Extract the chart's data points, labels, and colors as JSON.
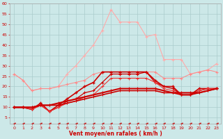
{
  "x": [
    0,
    1,
    2,
    3,
    4,
    5,
    6,
    7,
    8,
    9,
    10,
    11,
    12,
    13,
    14,
    15,
    16,
    17,
    18,
    19,
    20,
    21,
    22,
    23
  ],
  "line_light_pink": [
    26,
    23,
    18,
    19,
    19,
    20,
    26,
    30,
    35,
    40,
    47,
    57,
    51,
    51,
    51,
    44,
    45,
    33,
    33,
    33,
    26,
    27,
    28,
    31
  ],
  "line_med_pink": [
    26,
    23,
    18,
    19,
    19,
    20,
    21,
    22,
    23,
    26,
    27,
    27,
    27,
    27,
    27,
    27,
    27,
    24,
    24,
    24,
    26,
    27,
    28,
    27
  ],
  "line_dark_red1": [
    10,
    10,
    9,
    12,
    8,
    11,
    14,
    17,
    20,
    22,
    27,
    27,
    27,
    27,
    27,
    27,
    23,
    20,
    20,
    16,
    16,
    19,
    19,
    19
  ],
  "line_dark_red2": [
    10,
    10,
    9,
    11,
    8,
    10,
    13,
    14,
    17,
    18,
    22,
    26,
    26,
    26,
    26,
    27,
    22,
    20,
    19,
    16,
    16,
    18,
    19,
    19
  ],
  "line_dark_red3": [
    10,
    10,
    9,
    11,
    8,
    10,
    12,
    13,
    15,
    16,
    20,
    24,
    24,
    24,
    24,
    24,
    22,
    19,
    18,
    16,
    16,
    18,
    19,
    19
  ],
  "line_thin_dark1": [
    10,
    10,
    10,
    11,
    11,
    12,
    13,
    14,
    15,
    16,
    17,
    18,
    19,
    19,
    19,
    19,
    19,
    18,
    17,
    17,
    17,
    17,
    18,
    19
  ],
  "line_thin_dark2": [
    10,
    10,
    10,
    11,
    11,
    11,
    12,
    13,
    14,
    15,
    16,
    17,
    18,
    18,
    18,
    18,
    18,
    17,
    17,
    16,
    16,
    17,
    18,
    19
  ],
  "line_dashed": [
    2,
    2,
    2,
    2,
    2,
    2,
    2,
    2,
    2,
    2,
    2,
    2,
    2,
    2,
    2,
    2,
    2,
    2,
    2,
    2,
    2,
    2,
    2,
    2
  ],
  "ylim": [
    2,
    60
  ],
  "yticks": [
    5,
    10,
    15,
    20,
    25,
    30,
    35,
    40,
    45,
    50,
    55,
    60
  ],
  "xlim": [
    -0.5,
    23.5
  ],
  "xticks": [
    0,
    1,
    2,
    3,
    4,
    5,
    6,
    7,
    8,
    9,
    10,
    11,
    12,
    13,
    14,
    15,
    16,
    17,
    18,
    19,
    20,
    21,
    22,
    23
  ],
  "xlabel": "Vent moyen/en rafales ( km/h )",
  "bg_color": "#cce8e8",
  "grid_color": "#aacccc",
  "color_light_pink": "#ffaaaa",
  "color_med_pink": "#ff8888",
  "color_dark_red": "#cc0000",
  "color_dark_red2": "#dd1111",
  "color_thin": "#cc0000"
}
